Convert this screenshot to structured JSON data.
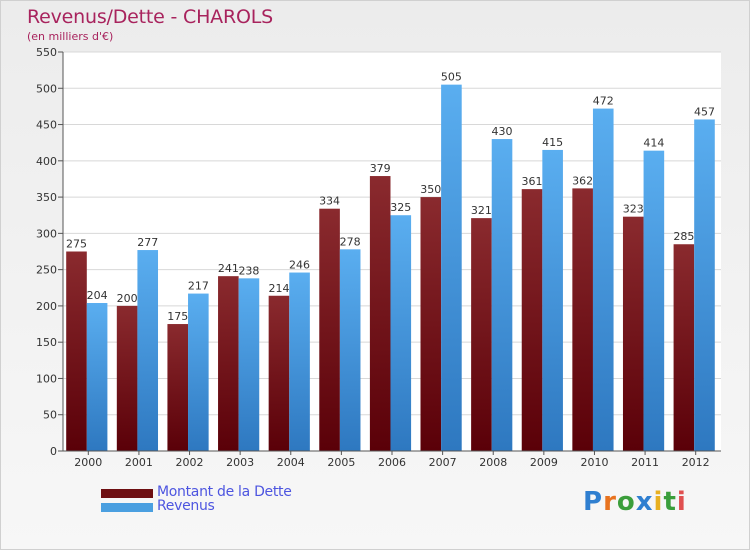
{
  "header": {
    "title": "Revenus/Dette - CHAROLS",
    "subtitle": "(en milliers d'€)"
  },
  "colors": {
    "dette": "#6e0f12",
    "revenus": "#4a9fe0",
    "title": "#a8235d",
    "legend_text": "#4d55e0"
  },
  "logo": {
    "text": "Proxiti",
    "letters": [
      "P",
      "r",
      "o",
      "x",
      "i",
      "t",
      "i"
    ],
    "letter_colors": [
      "#2f7fd0",
      "#e8731f",
      "#3b9e3b",
      "#2f7fd0",
      "#e8b020",
      "#3b9e3b",
      "#e05050"
    ]
  },
  "chart_data": {
    "type": "bar",
    "title": "Revenus/Dette - CHAROLS",
    "subtitle": "(en milliers d'€)",
    "categories": [
      "2000",
      "2001",
      "2002",
      "2003",
      "2004",
      "2005",
      "2006",
      "2007",
      "2008",
      "2009",
      "2010",
      "2011",
      "2012"
    ],
    "series": [
      {
        "name": "Montant de la Dette",
        "color": "#6e0f12",
        "values": [
          275,
          200,
          175,
          241,
          214,
          334,
          379,
          350,
          321,
          361,
          362,
          323,
          285
        ]
      },
      {
        "name": "Revenus",
        "color": "#4a9fe0",
        "values": [
          204,
          277,
          217,
          238,
          246,
          278,
          325,
          505,
          430,
          415,
          472,
          414,
          457
        ]
      }
    ],
    "ylim": [
      0,
      550
    ],
    "yticks": [
      0,
      50,
      100,
      150,
      200,
      250,
      300,
      350,
      400,
      450,
      500,
      550
    ],
    "grid": true,
    "legend": "bottom-left"
  }
}
